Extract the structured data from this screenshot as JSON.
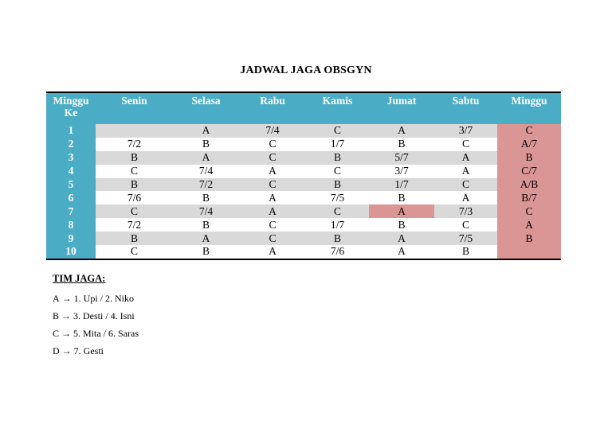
{
  "title": "JADWAL JAGA OBSGYN",
  "columns": [
    "Minggu Ke",
    "Senin",
    "Selasa",
    "Rabu",
    "Kamis",
    "Jumat",
    "Sabtu",
    "Minggu"
  ],
  "rows": [
    [
      "1",
      "",
      "A",
      "7/4",
      "C",
      "A",
      "3/7",
      "C"
    ],
    [
      "2",
      "7/2",
      "B",
      "C",
      "1/7",
      "B",
      "C",
      "A/7"
    ],
    [
      "3",
      "B",
      "A",
      "C",
      "B",
      "5/7",
      "A",
      "B"
    ],
    [
      "4",
      "C",
      "7/4",
      "A",
      "C",
      "3/7",
      "A",
      "C/7"
    ],
    [
      "5",
      "B",
      "7/2",
      "C",
      "B",
      "1/7",
      "C",
      "A/B"
    ],
    [
      "6",
      "7/6",
      "B",
      "A",
      "7/5",
      "B",
      "A",
      "B/7"
    ],
    [
      "7",
      "C",
      "7/4",
      "A",
      "C",
      "A",
      "7/3",
      "C"
    ],
    [
      "8",
      "7/2",
      "B",
      "C",
      "1/7",
      "B",
      "C",
      "A"
    ],
    [
      "9",
      "B",
      "A",
      "C",
      "B",
      "A",
      "7/5",
      "B"
    ],
    [
      "10",
      "C",
      "B",
      "A",
      "7/6",
      "A",
      "B",
      ""
    ]
  ],
  "legend": {
    "heading": "TIM JAGA:",
    "items": [
      {
        "team": "A",
        "members": "1. Upi / 2. Niko"
      },
      {
        "team": "B",
        "members": "3. Desti / 4. Isni"
      },
      {
        "team": "C",
        "members": "5. Mita / 6. Saras"
      },
      {
        "team": "D",
        "members": "7. Gesti"
      }
    ]
  },
  "colors": {
    "header": "#4bacc6",
    "sunday": "#da9694",
    "stripe": "#d9d9d9"
  }
}
